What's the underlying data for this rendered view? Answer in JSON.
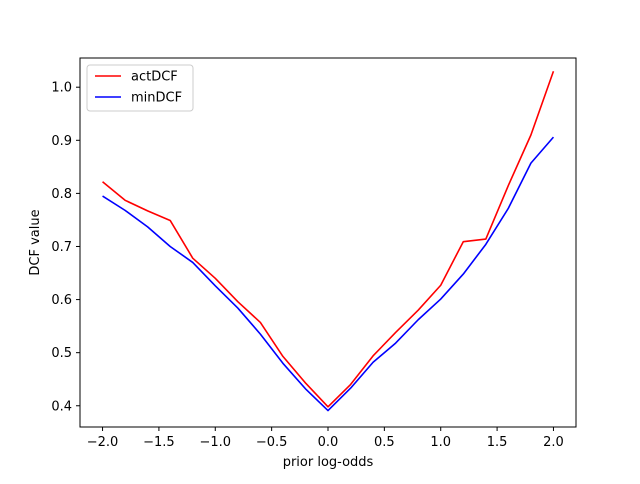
{
  "chart_data": {
    "type": "line",
    "title": "",
    "xlabel": "prior log-odds",
    "ylabel": "DCF value",
    "xlim": [
      -2.2,
      2.2
    ],
    "ylim": [
      0.36,
      1.055
    ],
    "x_ticks": [
      -2.0,
      -1.5,
      -1.0,
      -0.5,
      0.0,
      0.5,
      1.0,
      1.5,
      2.0
    ],
    "x_tick_labels": [
      "−2.0",
      "−1.5",
      "−1.0",
      "−0.5",
      "0.0",
      "0.5",
      "1.0",
      "1.5",
      "2.0"
    ],
    "y_ticks": [
      0.4,
      0.5,
      0.6,
      0.7,
      0.8,
      0.9,
      1.0
    ],
    "y_tick_labels": [
      "0.4",
      "0.5",
      "0.6",
      "0.7",
      "0.8",
      "0.9",
      "1.0"
    ],
    "grid": false,
    "legend_position": "upper-left",
    "x": [
      -2.0,
      -1.8,
      -1.6,
      -1.4,
      -1.2,
      -1.0,
      -0.8,
      -0.6,
      -0.4,
      -0.2,
      0.0,
      0.2,
      0.4,
      0.6,
      0.8,
      1.0,
      1.2,
      1.4,
      1.6,
      1.8,
      2.0
    ],
    "series": [
      {
        "name": "actDCF",
        "color": "#ff0000",
        "values": [
          0.822,
          0.787,
          0.767,
          0.749,
          0.678,
          0.64,
          0.596,
          0.557,
          0.493,
          0.443,
          0.398,
          0.44,
          0.494,
          0.538,
          0.58,
          0.627,
          0.709,
          0.714,
          0.815,
          0.91,
          1.03
        ]
      },
      {
        "name": "minDCF",
        "color": "#0000ff",
        "values": [
          0.795,
          0.768,
          0.737,
          0.7,
          0.67,
          0.626,
          0.584,
          0.535,
          0.48,
          0.432,
          0.391,
          0.433,
          0.482,
          0.518,
          0.562,
          0.601,
          0.648,
          0.704,
          0.772,
          0.857,
          0.906
        ]
      }
    ]
  }
}
